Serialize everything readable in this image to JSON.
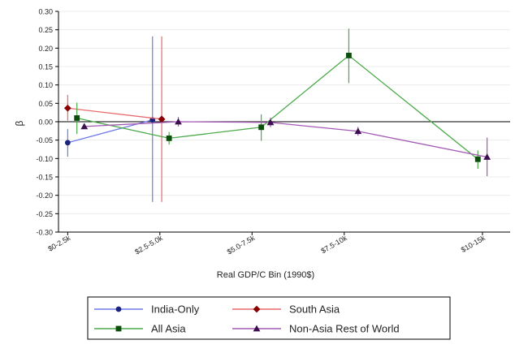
{
  "chart_data": {
    "type": "line",
    "title": "",
    "xlabel": "Real GDP/C Bin (1990$)",
    "ylabel": "β",
    "ylim": [
      -0.3,
      0.3
    ],
    "yticks": [
      0.3,
      0.25,
      0.2,
      0.15,
      0.1,
      0.05,
      0.0,
      -0.05,
      -0.1,
      -0.15,
      -0.2,
      -0.25,
      -0.3
    ],
    "ytick_labels": [
      "0.30",
      "0.25",
      "0.20",
      "0.15",
      "0.10",
      "0.05",
      "0.00",
      "-0.05",
      "-0.10",
      "-0.15",
      "-0.20",
      "-0.25",
      "-0.30"
    ],
    "xlim": [
      -0.1,
      4.8
    ],
    "x": [
      0,
      1,
      2,
      3,
      4.5
    ],
    "xtick_labels": [
      "$0-2.5k",
      "$2.5-5.0k",
      "$5.0-7.5k",
      "$7.5-10k",
      "$10-15k"
    ],
    "grid": true,
    "legend_position": "bottom",
    "series": [
      {
        "name": "India-Only",
        "color": "#6f7ae8",
        "marker": "circle",
        "x": [
          0,
          0.92
        ],
        "y": [
          -0.057,
          0.005
        ],
        "ci_low": [
          -0.095,
          -0.218
        ],
        "ci_high": [
          -0.02,
          0.232
        ]
      },
      {
        "name": "South Asia",
        "color": "#e8696b",
        "marker": "diamond",
        "x": [
          0,
          1.02
        ],
        "y": [
          0.037,
          0.007
        ],
        "ci_low": [
          0.003,
          -0.218
        ],
        "ci_high": [
          0.073,
          0.232
        ]
      },
      {
        "name": "All Asia",
        "color": "#4caa4c",
        "marker": "square",
        "x": [
          0.1,
          1.1,
          2.1,
          3.05,
          4.45
        ],
        "y": [
          0.01,
          -0.045,
          -0.015,
          0.18,
          -0.102
        ],
        "ci_low": [
          -0.033,
          -0.062,
          -0.052,
          0.105,
          -0.128
        ],
        "ci_high": [
          0.052,
          -0.028,
          0.02,
          0.253,
          -0.078
        ]
      },
      {
        "name": "Non-Asia Rest of World",
        "color": "#a35ab4",
        "marker": "triangle",
        "x": [
          0.18,
          1.2,
          2.2,
          3.15,
          4.55
        ],
        "y": [
          -0.013,
          0.0,
          -0.002,
          -0.026,
          -0.096
        ],
        "ci_low": [
          -0.018,
          -0.013,
          -0.015,
          -0.038,
          -0.148
        ],
        "ci_high": [
          -0.008,
          0.013,
          0.011,
          -0.014,
          -0.043
        ]
      }
    ]
  }
}
